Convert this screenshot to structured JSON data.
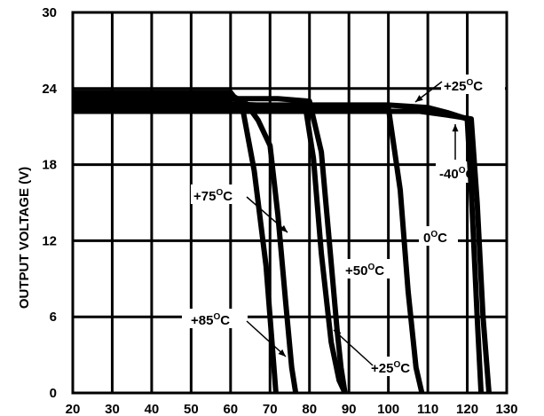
{
  "chart_data": {
    "type": "line",
    "ylabel": "OUTPUT VOLTAGE (V)",
    "xlim": [
      20,
      130
    ],
    "ylim": [
      0,
      30
    ],
    "grid": true,
    "legend": "none",
    "x_ticks": [
      "20",
      "30",
      "40",
      "50",
      "60",
      "70",
      "80",
      "90",
      "100",
      "110",
      "120",
      "130"
    ],
    "y_ticks": [
      "0",
      "6",
      "12",
      "18",
      "24",
      "30"
    ],
    "series": [
      {
        "name": "+85°C",
        "x": [
          20,
          60,
          63,
          66,
          69,
          70.5,
          71.5
        ],
        "y": [
          23.7,
          23.7,
          22.5,
          17.5,
          10,
          4,
          0
        ]
      },
      {
        "name": "+75°C",
        "x": [
          20,
          60,
          64,
          67,
          70,
          72,
          74,
          75.5,
          76.5
        ],
        "y": [
          23.5,
          23.5,
          22.8,
          21.5,
          19.5,
          14,
          7,
          2,
          0
        ]
      },
      {
        "name": "+50°C",
        "x": [
          20,
          72,
          80,
          83,
          85,
          87,
          88,
          89
        ],
        "y": [
          23.2,
          23.2,
          23,
          19,
          12,
          5,
          2,
          0
        ]
      },
      {
        "name": "+25°C",
        "x": [
          20,
          60,
          79,
          81,
          83,
          85.5,
          87.5,
          89
        ],
        "y": [
          22.8,
          22.8,
          22.5,
          18.5,
          11,
          4,
          1,
          0
        ]
      },
      {
        "name": "0°C",
        "x": [
          20,
          60,
          100,
          103,
          105,
          107,
          108.5
        ],
        "y": [
          22.5,
          22.5,
          22.5,
          16,
          8,
          2,
          0
        ]
      },
      {
        "name": "+25°C",
        "x": [
          20,
          60,
          80,
          100,
          110,
          115,
          120,
          121,
          122.5,
          123.5
        ],
        "y": [
          22.7,
          22.7,
          22.7,
          22.7,
          22.5,
          22.1,
          21.6,
          16,
          6,
          0
        ]
      },
      {
        "name": "-40°C",
        "x": [
          20,
          60,
          80,
          100,
          108,
          115,
          121,
          122.5,
          124,
          125.5
        ],
        "y": [
          22.2,
          22.2,
          22.2,
          22.2,
          22.2,
          21.9,
          21.6,
          15,
          6,
          0
        ]
      }
    ],
    "annotations": [
      {
        "text": "+25",
        "unit": "C",
        "degree": "O"
      },
      {
        "text": "-40",
        "unit": "C",
        "degree": "O"
      },
      {
        "text": "+75",
        "unit": "C",
        "degree": "O"
      },
      {
        "text": "0",
        "unit": "C",
        "degree": "O"
      },
      {
        "text": "+50",
        "unit": "C",
        "degree": "O"
      },
      {
        "text": "+85",
        "unit": "C",
        "degree": "O"
      },
      {
        "text": "+25",
        "unit": "C",
        "degree": "O"
      }
    ]
  }
}
